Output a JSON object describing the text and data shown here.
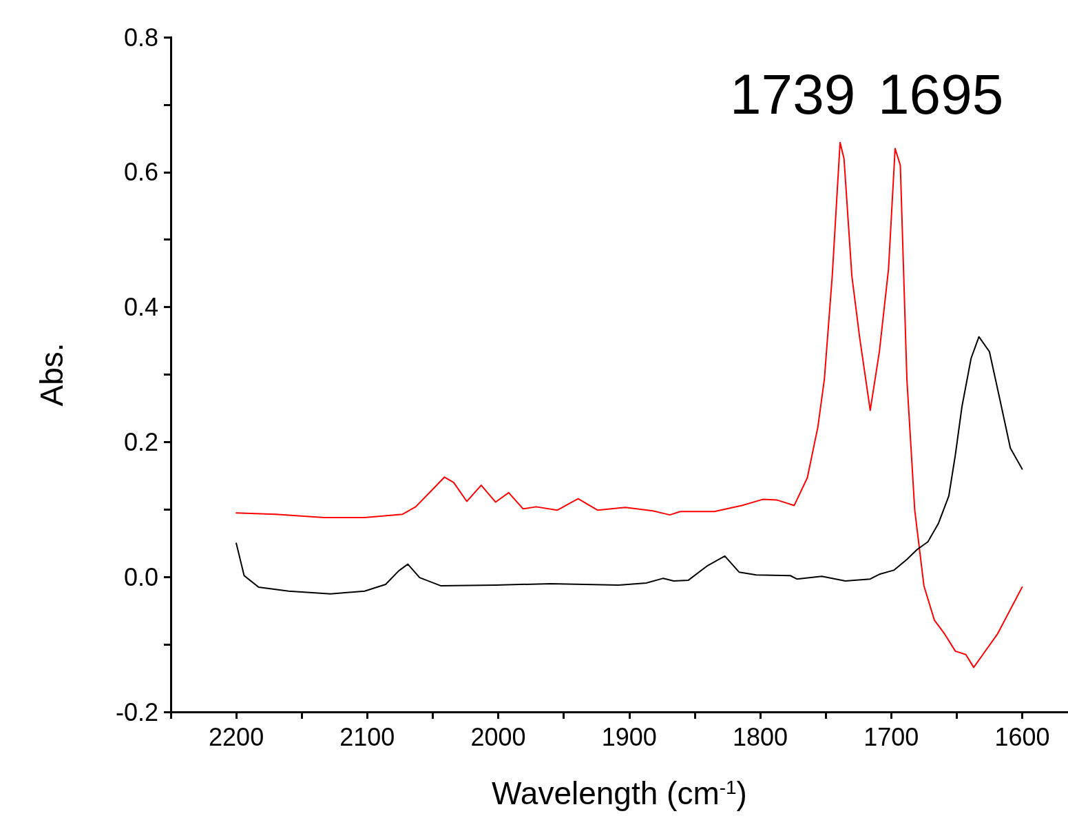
{
  "chart_data": {
    "type": "line",
    "xlabel": "Wavelength (cm$^{-1}$)",
    "ylabel": "Abs.",
    "annotations": [
      "1739",
      "1695"
    ],
    "xlim": [
      2250,
      1565
    ],
    "ylim": [
      -0.2,
      0.8
    ],
    "xticks": [
      {
        "value": 2250,
        "label": null
      },
      2200,
      {
        "value": 2150,
        "label": null
      },
      2100,
      {
        "value": 2050,
        "label": null
      },
      2000,
      {
        "value": 1950,
        "label": null
      },
      1900,
      {
        "value": 1850,
        "label": null
      },
      1800,
      {
        "value": 1750,
        "label": null
      },
      1700,
      {
        "value": 1650,
        "label": null
      },
      1600
    ],
    "yticks": [
      {
        "value": -0.2,
        "label": "-0.2"
      },
      {
        "value": -0.1,
        "label": null
      },
      {
        "value": 0,
        "label": "0.0"
      },
      {
        "value": 0.1,
        "label": null
      },
      {
        "value": 0.2,
        "label": "0.2"
      },
      {
        "value": 0.3,
        "label": null
      },
      {
        "value": 0.4,
        "label": "0.4"
      },
      {
        "value": 0.5,
        "label": null
      },
      {
        "value": 0.6,
        "label": "0.6"
      },
      {
        "value": 0.7,
        "label": null
      },
      {
        "value": 0.8,
        "label": "0.8"
      }
    ],
    "grid": false,
    "marker": "none",
    "line_style": "solid",
    "series": [
      {
        "color": "#ff0000",
        "x": [
          2200,
          2170,
          2133,
          2102,
          2073,
          2063,
          2050,
          2041,
          2034,
          2024,
          2013,
          2002,
          1992,
          1981,
          1971,
          1955,
          1939,
          1924,
          1903,
          1882,
          1869,
          1861,
          1835,
          1814,
          1798,
          1787,
          1774,
          1764,
          1756,
          1751,
          1745,
          1739,
          1736,
          1730,
          1724,
          1716,
          1709,
          1702,
          1697,
          1693,
          1688,
          1682,
          1675,
          1667,
          1659,
          1651,
          1643,
          1637,
          1630,
          1619,
          1600
        ],
        "values": [
          0.095,
          0.093,
          0.088,
          0.088,
          0.093,
          0.104,
          0.13,
          0.148,
          0.14,
          0.112,
          0.136,
          0.111,
          0.125,
          0.101,
          0.104,
          0.099,
          0.116,
          0.099,
          0.103,
          0.098,
          0.092,
          0.097,
          0.097,
          0.106,
          0.115,
          0.114,
          0.106,
          0.147,
          0.222,
          0.293,
          0.446,
          0.644,
          0.62,
          0.446,
          0.354,
          0.247,
          0.334,
          0.457,
          0.635,
          0.61,
          0.293,
          0.099,
          -0.013,
          -0.064,
          -0.085,
          -0.11,
          -0.115,
          -0.134,
          -0.115,
          -0.085,
          -0.015
        ]
      },
      {
        "color": "#000000",
        "x": [
          2200,
          2194,
          2183,
          2160,
          2128,
          2102,
          2086,
          2076,
          2069,
          2060,
          2044,
          2002,
          1960,
          1908,
          1887,
          1874,
          1866,
          1855,
          1840,
          1827,
          1816,
          1803,
          1777,
          1772,
          1753,
          1735,
          1716,
          1709,
          1698,
          1688,
          1680,
          1672,
          1664,
          1656,
          1651,
          1646,
          1639,
          1633,
          1625,
          1617,
          1609,
          1600
        ],
        "values": [
          0.05,
          0.002,
          -0.015,
          -0.021,
          -0.025,
          -0.021,
          -0.011,
          0.009,
          0.019,
          -0.001,
          -0.013,
          -0.012,
          -0.01,
          -0.012,
          -0.009,
          -0.002,
          -0.006,
          -0.005,
          0.017,
          0.031,
          0.007,
          0.003,
          0.002,
          -0.003,
          0.001,
          -0.006,
          -0.003,
          0.004,
          0.01,
          0.026,
          0.041,
          0.052,
          0.079,
          0.12,
          0.181,
          0.252,
          0.324,
          0.356,
          0.334,
          0.263,
          0.191,
          0.16
        ]
      }
    ]
  }
}
